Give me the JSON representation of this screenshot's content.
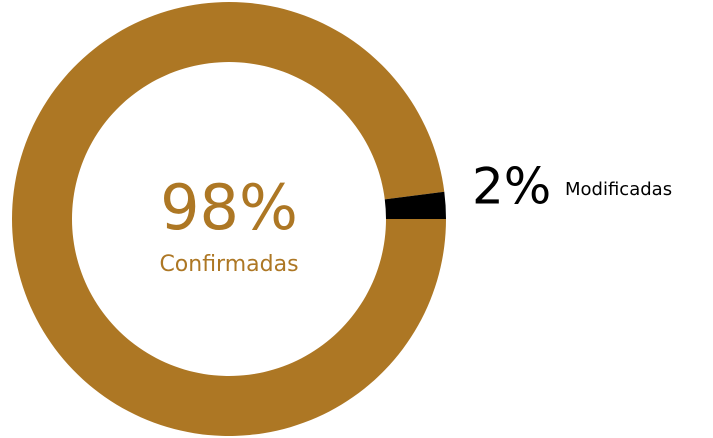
{
  "chart_data": {
    "type": "pie",
    "donut": true,
    "categories": [
      "Confirmadas",
      "Modificadas"
    ],
    "values": [
      98,
      2
    ],
    "value_labels": [
      "98%",
      "2%"
    ],
    "colors": [
      "#ad7724",
      "#000000"
    ]
  }
}
